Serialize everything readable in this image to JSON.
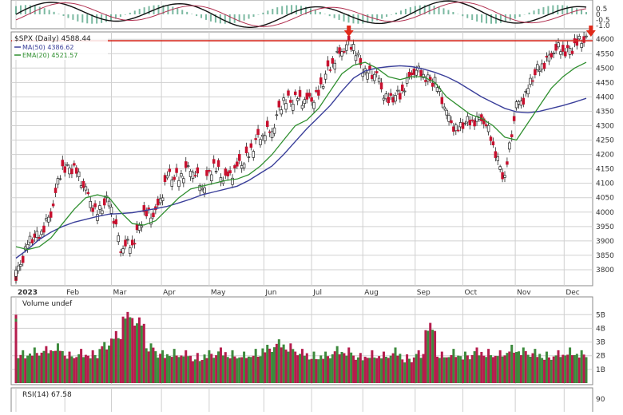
{
  "colors": {
    "up": "#3d8a3d",
    "down": "#c8102e",
    "ma50": "#3a3f9a",
    "ema20": "#2f8f2f",
    "resistance": "#d62b20",
    "arrow": "#e02a1a",
    "grid": "#d0d0d0",
    "vol_up": "#3d8a3d",
    "vol_down": "#b51d4d"
  },
  "chart_data": {
    "type": "candlestick",
    "legend": {
      "title": "$SPX (Daily) 4588.44",
      "ma50": "MA(50) 4386.62",
      "ema20": "EMA(20) 4521.57"
    },
    "xaxis_labels": [
      {
        "label": "2023",
        "week": 0
      },
      {
        "label": "Feb",
        "week": 4.2
      },
      {
        "label": "Mar",
        "week": 8.2
      },
      {
        "label": "Apr",
        "week": 12.5
      },
      {
        "label": "May",
        "week": 16.6
      },
      {
        "label": "Jun",
        "week": 21.3
      },
      {
        "label": "Jul",
        "week": 25.4
      },
      {
        "label": "Aug",
        "week": 29.8
      },
      {
        "label": "Sep",
        "week": 34.3
      },
      {
        "label": "Oct",
        "week": 38.4
      },
      {
        "label": "Nov",
        "week": 42.9
      },
      {
        "label": "Dec",
        "week": 47.1
      }
    ],
    "price_axis": {
      "ylim": [
        3750,
        4620
      ],
      "ticks": [
        3800,
        3850,
        3900,
        3950,
        4000,
        4050,
        4100,
        4150,
        4200,
        4250,
        4300,
        4350,
        4400,
        4450,
        4500,
        4550,
        4600
      ]
    },
    "resistance_level": 4595,
    "arrows_at_weeks": [
      28.6,
      49.4
    ],
    "weekly_close": [
      3790,
      3880,
      3930,
      3990,
      4170,
      4140,
      4080,
      3980,
      4060,
      3870,
      3900,
      3980,
      4000,
      4110,
      4130,
      4150,
      4100,
      4150,
      4120,
      4140,
      4210,
      4260,
      4300,
      4380,
      4400,
      4370,
      4420,
      4500,
      4580,
      4570,
      4490,
      4460,
      4390,
      4400,
      4500,
      4470,
      4460,
      4330,
      4290,
      4310,
      4340,
      4230,
      4120,
      4360,
      4430,
      4500,
      4560,
      4560,
      4580,
      4590
    ],
    "ma50": [
      3840,
      3870,
      3905,
      3930,
      3950,
      3965,
      3975,
      3985,
      3993,
      3995,
      3998,
      4005,
      4012,
      4020,
      4032,
      4045,
      4060,
      4070,
      4080,
      4090,
      4110,
      4135,
      4160,
      4200,
      4245,
      4290,
      4330,
      4370,
      4420,
      4465,
      4490,
      4500,
      4505,
      4508,
      4505,
      4497,
      4485,
      4470,
      4450,
      4425,
      4400,
      4380,
      4360,
      4348,
      4345,
      4350,
      4360,
      4370,
      4382,
      4395
    ],
    "ema20": [
      3880,
      3870,
      3880,
      3910,
      3960,
      4010,
      4050,
      4060,
      4050,
      4000,
      3960,
      3955,
      3970,
      4010,
      4050,
      4080,
      4090,
      4100,
      4110,
      4115,
      4130,
      4160,
      4200,
      4250,
      4300,
      4320,
      4360,
      4420,
      4480,
      4510,
      4520,
      4500,
      4470,
      4460,
      4470,
      4470,
      4450,
      4400,
      4370,
      4340,
      4325,
      4300,
      4260,
      4250,
      4310,
      4370,
      4430,
      4470,
      4500,
      4520
    ],
    "volume_axis": {
      "ylim": [
        0,
        5.6
      ],
      "ticks": [
        {
          "v": 1,
          "label": "1B"
        },
        {
          "v": 2,
          "label": "2B"
        },
        {
          "v": 3,
          "label": "3B"
        },
        {
          "v": 4,
          "label": "4B"
        },
        {
          "v": 5,
          "label": "5B"
        }
      ]
    },
    "volume_label": "Volume undef",
    "volume": [
      5.0,
      2.4,
      2.6,
      2.7,
      2.9,
      2.3,
      2.5,
      2.4,
      3.0,
      3.8,
      5.2,
      4.8,
      2.9,
      2.4,
      2.5,
      2.4,
      2.2,
      2.4,
      2.6,
      2.4,
      2.3,
      2.5,
      2.8,
      3.2,
      2.9,
      2.5,
      2.3,
      2.3,
      2.7,
      2.6,
      2.2,
      2.4,
      2.3,
      2.6,
      2.1,
      2.4,
      4.4,
      2.3,
      2.5,
      2.3,
      2.6,
      2.5,
      2.4,
      2.8,
      2.6,
      2.5,
      2.3,
      2.4,
      2.6,
      2.4
    ],
    "volume_up": [
      false,
      true,
      true,
      false,
      true,
      false,
      false,
      false,
      true,
      false,
      false,
      false,
      true,
      true,
      true,
      false,
      false,
      true,
      false,
      true,
      true,
      true,
      true,
      true,
      false,
      false,
      true,
      true,
      true,
      false,
      false,
      false,
      false,
      true,
      false,
      false,
      false,
      false,
      true,
      true,
      false,
      false,
      false,
      true,
      true,
      true,
      true,
      false,
      true,
      true
    ],
    "top_indicator_axis": {
      "ticks": [
        {
          "v": 0.5,
          "label": "0.5"
        },
        {
          "v": 0.0,
          "label": "0"
        },
        {
          "v": -0.5,
          "label": "-0.5"
        },
        {
          "v": -1.0,
          "label": "-1.0"
        }
      ]
    },
    "rsi_label": "RSI(14) 67.58",
    "rsi_tick": "90"
  }
}
